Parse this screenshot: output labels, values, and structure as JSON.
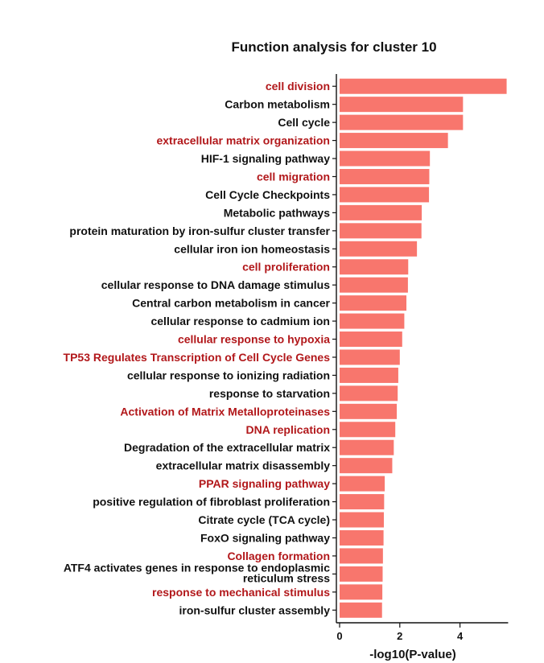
{
  "chart_data": {
    "type": "bar",
    "orientation": "horizontal",
    "title": "Function analysis for cluster 10",
    "xlabel": "-log10(P-value)",
    "ylabel": "",
    "xlim": [
      0,
      5.6
    ],
    "xticks": [
      0,
      2,
      4
    ],
    "grid": false,
    "legend": "none",
    "bar_color": "#f8766d",
    "highlight_color": "#b2181b",
    "default_label_color": "#111111",
    "categories": [
      {
        "label": "cell division",
        "value": 5.55,
        "highlight": true
      },
      {
        "label": "Carbon metabolism",
        "value": 4.1,
        "highlight": false
      },
      {
        "label": "Cell cycle",
        "value": 4.1,
        "highlight": false
      },
      {
        "label": "extracellular matrix organization",
        "value": 3.6,
        "highlight": true
      },
      {
        "label": "HIF-1 signaling pathway",
        "value": 3.0,
        "highlight": false
      },
      {
        "label": "cell migration",
        "value": 2.98,
        "highlight": true
      },
      {
        "label": "Cell Cycle Checkpoints",
        "value": 2.97,
        "highlight": false
      },
      {
        "label": "Metabolic pathways",
        "value": 2.73,
        "highlight": false
      },
      {
        "label": "protein maturation by iron-sulfur cluster transfer",
        "value": 2.72,
        "highlight": false
      },
      {
        "label": "cellular iron ion homeostasis",
        "value": 2.57,
        "highlight": false
      },
      {
        "label": "cell proliferation",
        "value": 2.28,
        "highlight": true
      },
      {
        "label": "cellular response to DNA damage stimulus",
        "value": 2.27,
        "highlight": false
      },
      {
        "label": "Central carbon metabolism in cancer",
        "value": 2.22,
        "highlight": false
      },
      {
        "label": "cellular response to cadmium ion",
        "value": 2.15,
        "highlight": false
      },
      {
        "label": "cellular response to hypoxia",
        "value": 2.08,
        "highlight": true
      },
      {
        "label": "TP53 Regulates Transcription of Cell Cycle Genes",
        "value": 2.0,
        "highlight": true
      },
      {
        "label": "cellular response to ionizing radiation",
        "value": 1.95,
        "highlight": false
      },
      {
        "label": "response to starvation",
        "value": 1.93,
        "highlight": false
      },
      {
        "label": "Activation of Matrix Metalloproteinases",
        "value": 1.9,
        "highlight": true
      },
      {
        "label": "DNA replication",
        "value": 1.85,
        "highlight": true
      },
      {
        "label": "Degradation of the extracellular matrix",
        "value": 1.8,
        "highlight": false
      },
      {
        "label": "extracellular matrix disassembly",
        "value": 1.75,
        "highlight": false
      },
      {
        "label": "PPAR signaling pathway",
        "value": 1.5,
        "highlight": true
      },
      {
        "label": "positive regulation of fibroblast proliferation",
        "value": 1.48,
        "highlight": false
      },
      {
        "label": "Citrate cycle (TCA cycle)",
        "value": 1.47,
        "highlight": false
      },
      {
        "label": "FoxO signaling pathway",
        "value": 1.46,
        "highlight": false
      },
      {
        "label": "Collagen formation",
        "value": 1.44,
        "highlight": true
      },
      {
        "label": [
          "ATF4 activates genes in response to endoplasmic",
          "reticulum  stress"
        ],
        "value": 1.43,
        "highlight": false
      },
      {
        "label": "response to mechanical stimulus",
        "value": 1.42,
        "highlight": true
      },
      {
        "label": "iron-sulfur cluster assembly",
        "value": 1.41,
        "highlight": false
      }
    ]
  }
}
